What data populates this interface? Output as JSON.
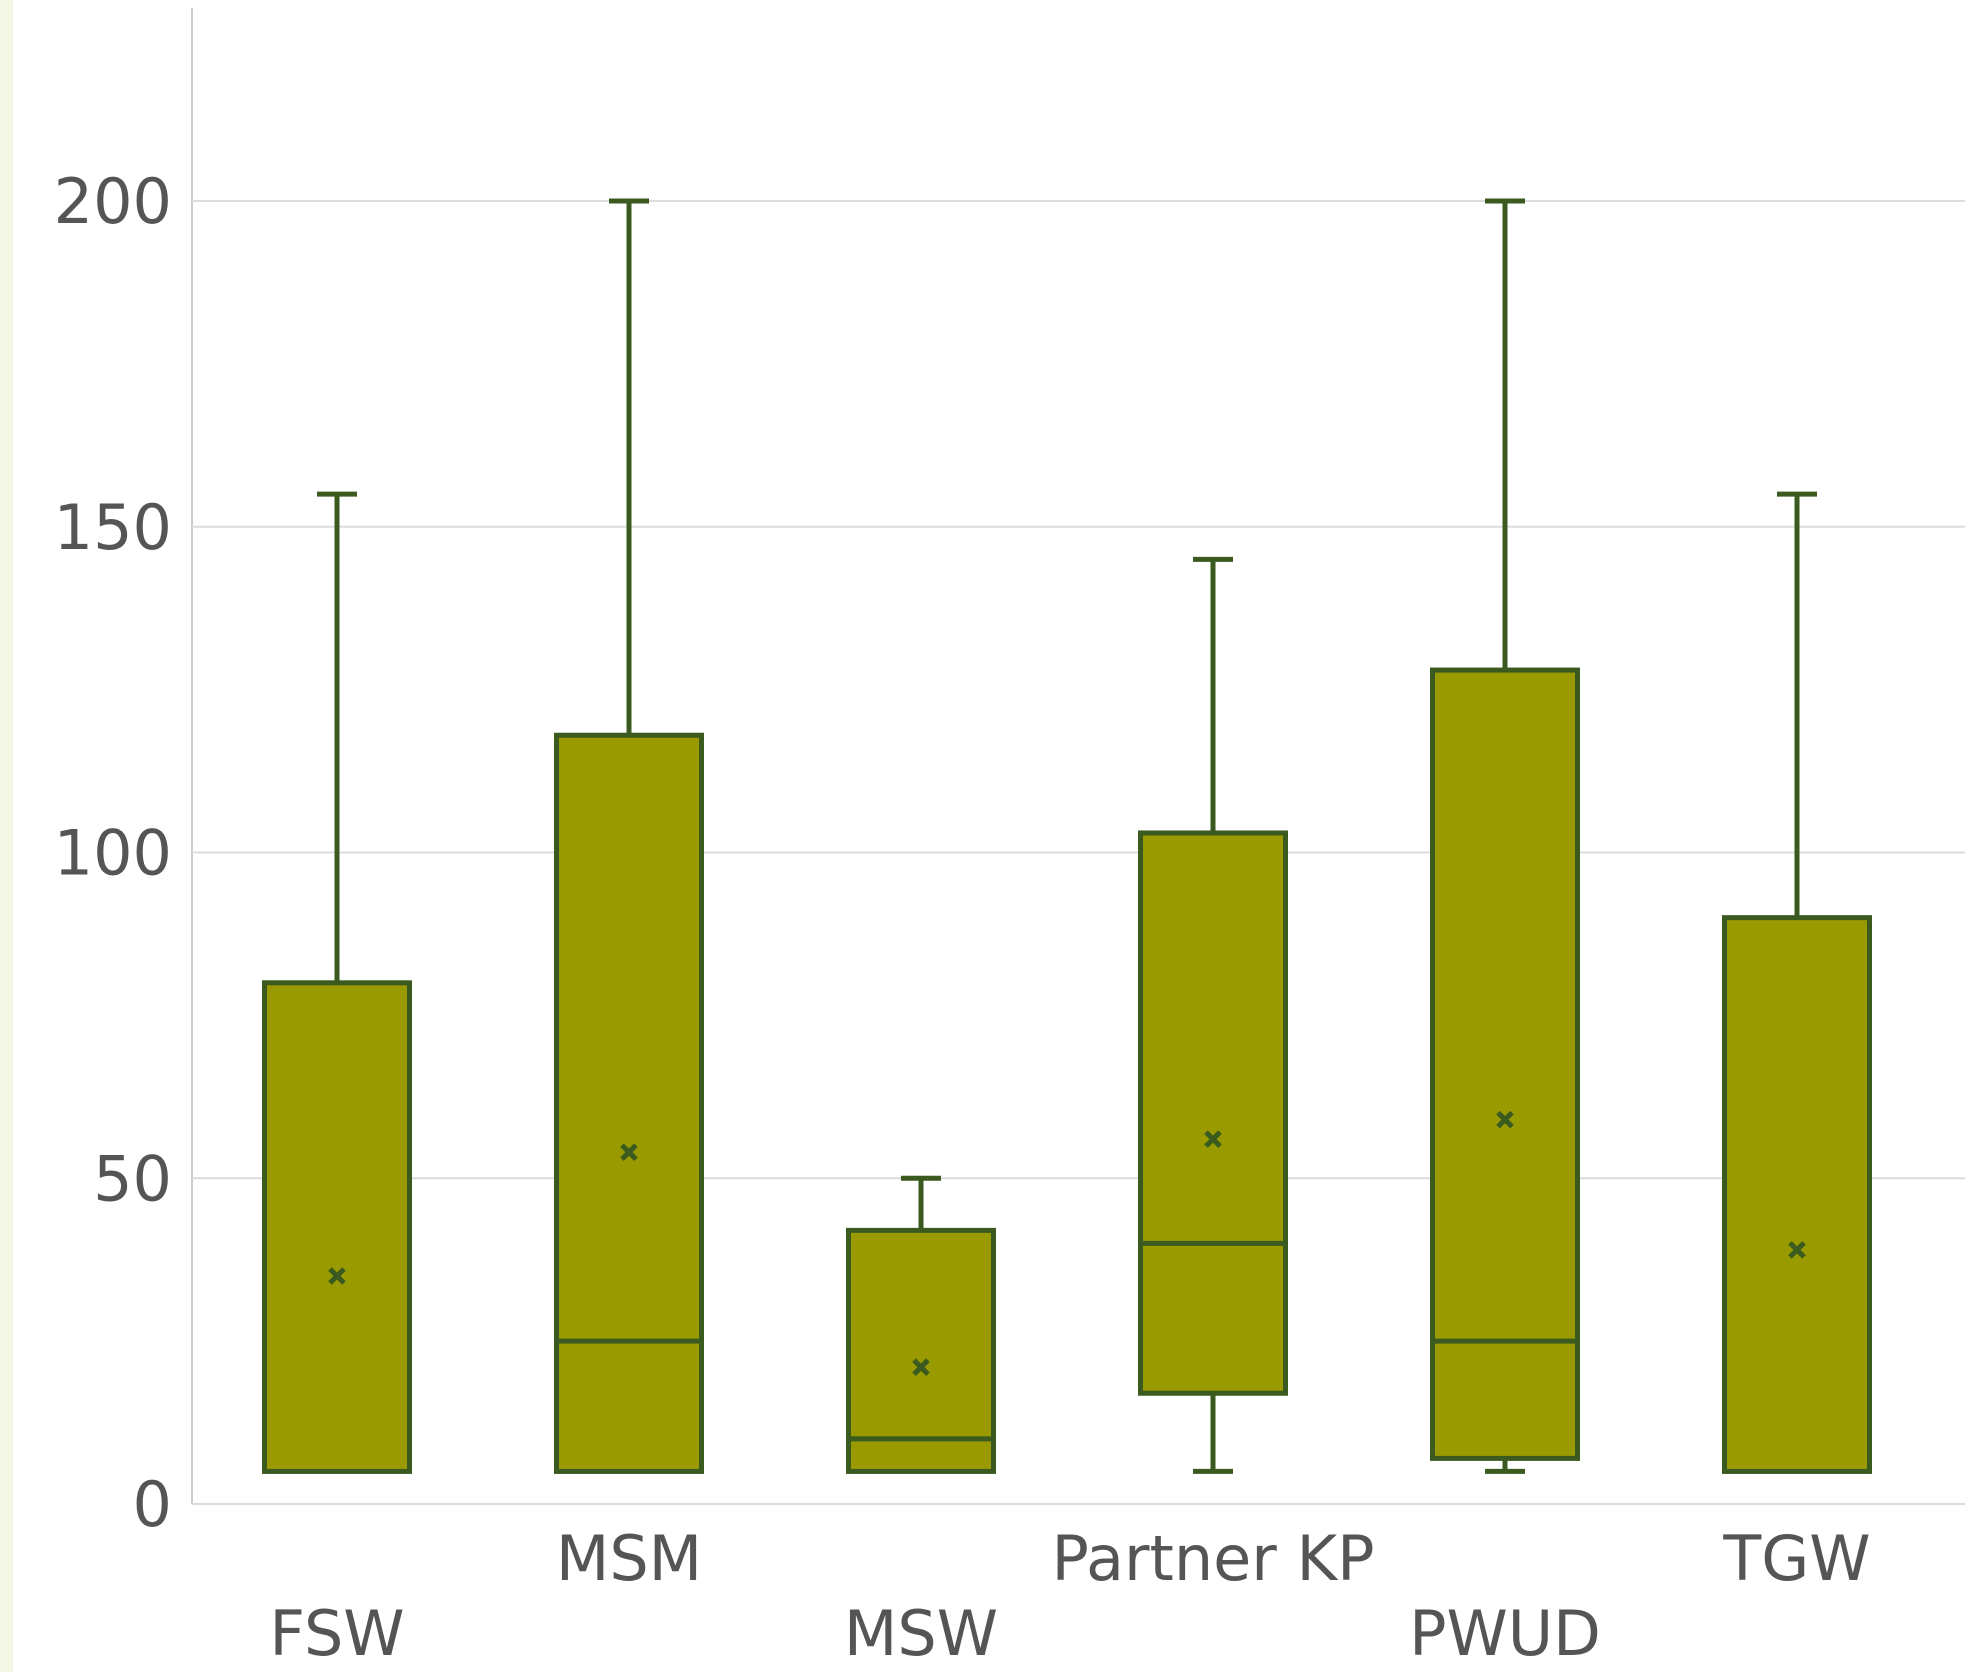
{
  "chart_data": {
    "type": "box",
    "title": "",
    "xlabel": "",
    "ylabel": "",
    "ylim": [
      0,
      200
    ],
    "y_ticks": [
      0,
      50,
      100,
      150,
      200
    ],
    "grid": true,
    "legend": "none",
    "colors": {
      "box_fill": "#989a00",
      "box_stroke": "#3a5a1f",
      "grid": "#dcdcdc",
      "axis": "#cccccc",
      "text": "#555555"
    },
    "categories": [
      "FSW",
      "MSM",
      "MSW",
      "Partner KP",
      "PWUD",
      "TGW"
    ],
    "series": [
      {
        "category": "FSW",
        "min": 5,
        "q1": 5,
        "median": 5,
        "q3": 80,
        "max": 155,
        "mean": 35
      },
      {
        "category": "MSM",
        "min": 5,
        "q1": 5,
        "median": 25,
        "q3": 118,
        "max": 200,
        "mean": 54
      },
      {
        "category": "MSW",
        "min": 5,
        "q1": 5,
        "median": 10,
        "q3": 42,
        "max": 50,
        "mean": 21
      },
      {
        "category": "Partner KP",
        "min": 5,
        "q1": 17,
        "median": 40,
        "q3": 103,
        "max": 145,
        "mean": 56
      },
      {
        "category": "PWUD",
        "min": 5,
        "q1": 7,
        "median": 25,
        "q3": 128,
        "max": 200,
        "mean": 59
      },
      {
        "category": "TGW",
        "min": 5,
        "q1": 5,
        "median": 5,
        "q3": 90,
        "max": 155,
        "mean": 39
      }
    ]
  }
}
